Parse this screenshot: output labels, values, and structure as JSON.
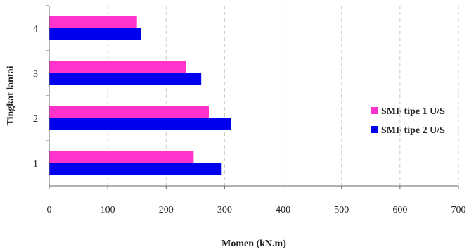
{
  "chart_data": {
    "type": "bar",
    "orientation": "horizontal",
    "categories": [
      "1",
      "2",
      "3",
      "4"
    ],
    "series": [
      {
        "name": "SMF tipe 1 U/S",
        "color": "#ff33cc",
        "values": [
          247,
          273,
          234,
          150
        ]
      },
      {
        "name": "SMF tipe 2 U/S",
        "color": "#0000ee",
        "values": [
          295,
          311,
          260,
          157
        ]
      }
    ],
    "title": "",
    "xlabel": "Momen (kN.m)",
    "ylabel": "Tingkat lantai",
    "xlim": [
      0,
      700
    ],
    "xticks": [
      "0",
      "100",
      "200",
      "300",
      "400",
      "500",
      "600",
      "700"
    ],
    "grid": "vertical dashed",
    "legend_position": "right"
  }
}
